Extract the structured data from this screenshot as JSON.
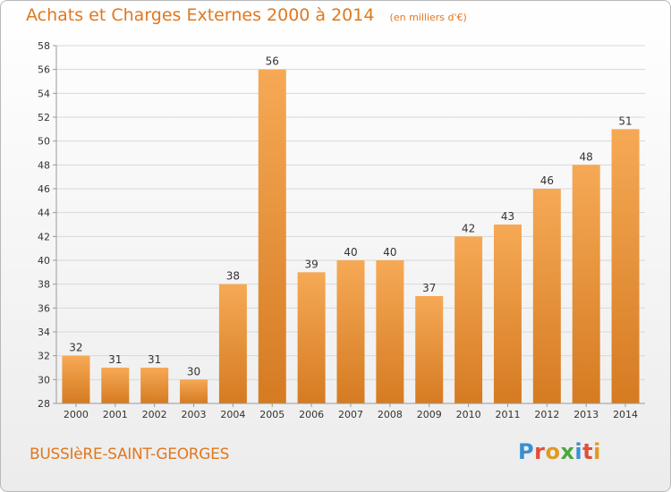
{
  "header": {
    "title": "Achats et Charges Externes 2000 à 2014",
    "subtitle": "(en milliers d'€)"
  },
  "footer": {
    "commune": "BUSSIèRE-SAINT-GEORGES",
    "brand": "Proxiti",
    "brand_letters": [
      {
        "ch": "P",
        "color": "#3a8fd0"
      },
      {
        "ch": "r",
        "color": "#e0503a"
      },
      {
        "ch": "o",
        "color": "#e09a1e"
      },
      {
        "ch": "x",
        "color": "#4aa83c"
      },
      {
        "ch": "i",
        "color": "#3a8fd0"
      },
      {
        "ch": "t",
        "color": "#e0503a"
      },
      {
        "ch": "i",
        "color": "#e09a1e"
      }
    ]
  },
  "colors": {
    "accent": "#e0781e",
    "bar_light": "#f6a955",
    "bar_dark": "#d57b22",
    "axis_text": "#333333",
    "grid": "#d8d8d8"
  },
  "chart_data": {
    "type": "bar",
    "categories": [
      "2000",
      "2001",
      "2002",
      "2003",
      "2004",
      "2005",
      "2006",
      "2007",
      "2008",
      "2009",
      "2010",
      "2011",
      "2012",
      "2013",
      "2014"
    ],
    "values": [
      32,
      31,
      31,
      30,
      38,
      56,
      39,
      40,
      40,
      37,
      42,
      43,
      46,
      48,
      51
    ],
    "ylim": [
      28,
      58
    ],
    "yticks": [
      28,
      30,
      32,
      34,
      36,
      38,
      40,
      42,
      44,
      46,
      48,
      50,
      52,
      54,
      56,
      58
    ],
    "grid": true,
    "data_labels": true
  }
}
